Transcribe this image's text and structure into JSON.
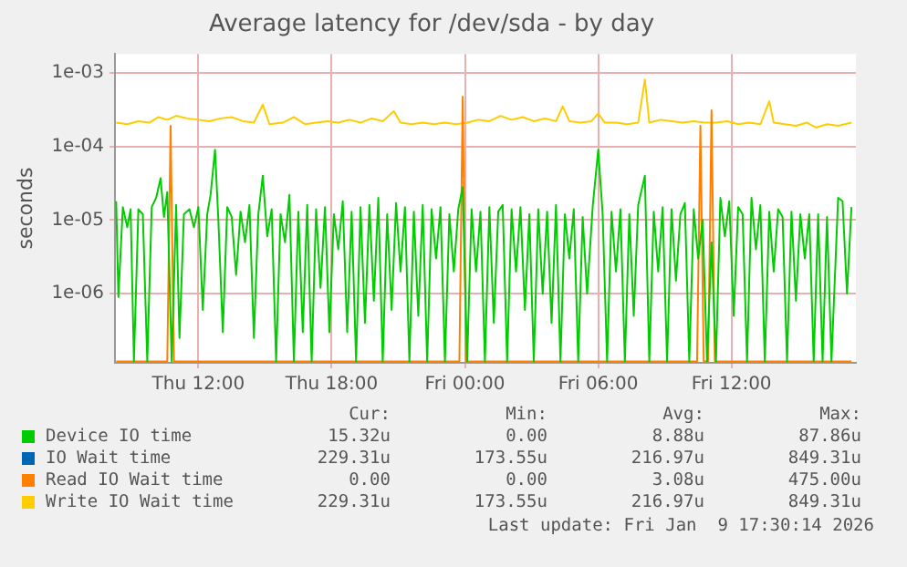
{
  "chart_data": {
    "type": "line",
    "title": "Average latency for /dev/sda - by day",
    "ylabel": "seconds",
    "log": "y",
    "grid": true,
    "legend": "bottom",
    "marker": "none",
    "line_style": "solid",
    "xlim": [
      "2026-01-08T08:15",
      "2026-01-09T17:36"
    ],
    "xticks": [
      {
        "value": "2026-01-08T12:00",
        "label": "Thu 12:00"
      },
      {
        "value": "2026-01-08T18:00",
        "label": "Thu 18:00"
      },
      {
        "value": "2026-01-09T00:00",
        "label": "Fri 00:00"
      },
      {
        "value": "2026-01-09T06:00",
        "label": "Fri 06:00"
      },
      {
        "value": "2026-01-09T12:00",
        "label": "Fri 12:00"
      }
    ],
    "ylim": [
      1.15e-07,
      0.0018
    ],
    "yticks": [
      {
        "value": 1e-06,
        "label": "1e-06"
      },
      {
        "value": 1e-05,
        "label": "1e-05"
      },
      {
        "value": 0.0001,
        "label": "1e-04"
      },
      {
        "value": 0.001,
        "label": "1e-03"
      }
    ],
    "annotations": [
      "Cur:",
      "Min:",
      "Avg:",
      "Max:",
      "15.32u",
      "0.00",
      "8.88u",
      "87.86u",
      "229.31u",
      "173.55u",
      "216.97u",
      "849.31u",
      "0.00",
      "0.00",
      "3.08u",
      "475.00u",
      "229.31u",
      "173.55u",
      "216.97u",
      "849.31u",
      "Last update: Fri Jan  9 17:30:14 2026"
    ],
    "series": [
      {
        "name": "Device IO time",
        "color": "#00cc00",
        "x": [
          "2026-01-08T08:18",
          "2026-01-08T08:24",
          "2026-01-08T08:36",
          "2026-01-08T08:48",
          "2026-01-08T08:57",
          "2026-01-08T09:06",
          "2026-01-08T09:18",
          "2026-01-08T09:30",
          "2026-01-08T09:42",
          "2026-01-08T09:54",
          "2026-01-08T10:06",
          "2026-01-08T10:18",
          "2026-01-08T10:27",
          "2026-01-08T10:36",
          "2026-01-08T10:48",
          "2026-01-08T11:00",
          "2026-01-08T11:09",
          "2026-01-08T11:21",
          "2026-01-08T11:36",
          "2026-01-08T11:48",
          "2026-01-08T12:00",
          "2026-01-08T12:12",
          "2026-01-08T12:24",
          "2026-01-08T12:33",
          "2026-01-08T12:45",
          "2026-01-08T12:54",
          "2026-01-08T13:06",
          "2026-01-08T13:18",
          "2026-01-08T13:30",
          "2026-01-08T13:42",
          "2026-01-08T13:54",
          "2026-01-08T14:06",
          "2026-01-08T14:18",
          "2026-01-08T14:30",
          "2026-01-08T14:42",
          "2026-01-08T14:54",
          "2026-01-08T15:06",
          "2026-01-08T15:18",
          "2026-01-08T15:30",
          "2026-01-08T15:42",
          "2026-01-08T15:54",
          "2026-01-08T16:06",
          "2026-01-08T16:18",
          "2026-01-08T16:30",
          "2026-01-08T16:42",
          "2026-01-08T16:54",
          "2026-01-08T17:06",
          "2026-01-08T17:18",
          "2026-01-08T17:30",
          "2026-01-08T17:42",
          "2026-01-08T17:54",
          "2026-01-08T18:06",
          "2026-01-08T18:18",
          "2026-01-08T18:30",
          "2026-01-08T18:42",
          "2026-01-08T18:54",
          "2026-01-08T19:06",
          "2026-01-08T19:18",
          "2026-01-08T19:30",
          "2026-01-08T19:42",
          "2026-01-08T19:54",
          "2026-01-08T20:06",
          "2026-01-08T20:18",
          "2026-01-08T20:30",
          "2026-01-08T20:42",
          "2026-01-08T20:54",
          "2026-01-08T21:06",
          "2026-01-08T21:18",
          "2026-01-08T21:30",
          "2026-01-08T21:42",
          "2026-01-08T21:54",
          "2026-01-08T22:06",
          "2026-01-08T22:18",
          "2026-01-08T22:30",
          "2026-01-08T22:42",
          "2026-01-08T22:54",
          "2026-01-08T23:06",
          "2026-01-08T23:18",
          "2026-01-08T23:30",
          "2026-01-08T23:42",
          "2026-01-08T23:54",
          "2026-01-09T00:06",
          "2026-01-09T00:18",
          "2026-01-09T00:30",
          "2026-01-09T00:42",
          "2026-01-09T00:54",
          "2026-01-09T01:06",
          "2026-01-09T01:18",
          "2026-01-09T01:30",
          "2026-01-09T01:42",
          "2026-01-09T01:54",
          "2026-01-09T02:06",
          "2026-01-09T02:18",
          "2026-01-09T02:30",
          "2026-01-09T02:42",
          "2026-01-09T02:54",
          "2026-01-09T03:06",
          "2026-01-09T03:18",
          "2026-01-09T03:30",
          "2026-01-09T03:42",
          "2026-01-09T03:54",
          "2026-01-09T04:06",
          "2026-01-09T04:18",
          "2026-01-09T04:30",
          "2026-01-09T04:42",
          "2026-01-09T04:54",
          "2026-01-09T05:06",
          "2026-01-09T05:18",
          "2026-01-09T05:30",
          "2026-01-09T05:45",
          "2026-01-09T06:00",
          "2026-01-09T06:12",
          "2026-01-09T06:24",
          "2026-01-09T06:36",
          "2026-01-09T06:48",
          "2026-01-09T07:00",
          "2026-01-09T07:12",
          "2026-01-09T07:24",
          "2026-01-09T07:36",
          "2026-01-09T07:48",
          "2026-01-09T08:06",
          "2026-01-09T08:18",
          "2026-01-09T08:30",
          "2026-01-09T08:42",
          "2026-01-09T08:54",
          "2026-01-09T09:06",
          "2026-01-09T09:18",
          "2026-01-09T09:30",
          "2026-01-09T09:42",
          "2026-01-09T09:54",
          "2026-01-09T10:06",
          "2026-01-09T10:18",
          "2026-01-09T10:30",
          "2026-01-09T10:42",
          "2026-01-09T10:54",
          "2026-01-09T11:06",
          "2026-01-09T11:18",
          "2026-01-09T11:30",
          "2026-01-09T11:42",
          "2026-01-09T11:54",
          "2026-01-09T12:06",
          "2026-01-09T12:18",
          "2026-01-09T12:30",
          "2026-01-09T12:42",
          "2026-01-09T12:54",
          "2026-01-09T13:06",
          "2026-01-09T13:18",
          "2026-01-09T13:30",
          "2026-01-09T13:42",
          "2026-01-09T13:54",
          "2026-01-09T14:06",
          "2026-01-09T14:18",
          "2026-01-09T14:30",
          "2026-01-09T14:42",
          "2026-01-09T14:54",
          "2026-01-09T15:06",
          "2026-01-09T15:18",
          "2026-01-09T15:30",
          "2026-01-09T15:42",
          "2026-01-09T15:54",
          "2026-01-09T16:06",
          "2026-01-09T16:18",
          "2026-01-09T16:30",
          "2026-01-09T16:48",
          "2026-01-09T17:00",
          "2026-01-09T17:12",
          "2026-01-09T17:24"
        ],
        "values": [
          1.8e-05,
          9e-07,
          1.5e-05,
          8e-06,
          1.4e-05,
          1.2e-07,
          1.4e-05,
          1.2e-05,
          1.2e-07,
          1.5e-05,
          2e-05,
          3.7e-05,
          1.1e-05,
          2.4e-05,
          1.2e-07,
          1.6e-05,
          2.5e-07,
          1.2e-05,
          1.4e-05,
          8e-06,
          1.5e-05,
          6e-07,
          1.2e-05,
          2.2e-05,
          9e-05,
          1e-05,
          3e-07,
          1.5e-05,
          1.1e-05,
          1.8e-06,
          1.3e-05,
          5e-06,
          1.6e-05,
          2.5e-07,
          1.2e-05,
          4e-05,
          6e-06,
          1.4e-05,
          1.2e-07,
          1.2e-05,
          5e-06,
          2.2e-05,
          1.2e-07,
          1.3e-05,
          3e-07,
          1.6e-05,
          1.2e-07,
          1.4e-05,
          1.2e-06,
          1.5e-05,
          3e-07,
          1.2e-05,
          4e-06,
          1.8e-05,
          3e-07,
          1.3e-05,
          1.2e-07,
          1.5e-05,
          4e-07,
          1.6e-05,
          8e-07,
          2e-05,
          1.2e-07,
          1.2e-05,
          6e-07,
          1.7e-05,
          2e-06,
          1.5e-05,
          1.2e-07,
          1.3e-05,
          5e-07,
          1.6e-05,
          1.2e-07,
          1.4e-05,
          3e-06,
          1.5e-05,
          1.2e-07,
          1.2e-05,
          2e-06,
          1.4e-05,
          2.8e-05,
          1.2e-07,
          1.4e-05,
          2e-06,
          1.3e-05,
          1.2e-07,
          1.5e-05,
          4e-07,
          1.3e-05,
          1.6e-05,
          1.2e-07,
          1.4e-05,
          2e-06,
          1.5e-05,
          6e-07,
          1.2e-05,
          1.2e-07,
          1.4e-05,
          1e-06,
          1.3e-05,
          4e-07,
          1.6e-05,
          1.2e-07,
          1.2e-05,
          3e-06,
          1.4e-05,
          1.2e-07,
          1.1e-05,
          1e-06,
          1.5e-05,
          9e-05,
          1.2e-05,
          1.2e-07,
          1.3e-05,
          2e-06,
          1.4e-05,
          1.2e-07,
          1.2e-05,
          5e-07,
          1.6e-05,
          4e-05,
          1.2e-07,
          1.3e-05,
          2e-06,
          1.5e-05,
          1.2e-07,
          1.4e-05,
          1.5e-06,
          1.2e-05,
          1.7e-05,
          1.2e-07,
          1.4e-05,
          3e-06,
          1e-05,
          1.2e-07,
          5e-06,
          1.2e-07,
          2e-05,
          6e-06,
          1.8e-05,
          5e-07,
          1.5e-05,
          1.2e-05,
          1.2e-07,
          2e-05,
          4e-06,
          1.6e-05,
          1.2e-07,
          1.3e-05,
          2e-06,
          1.4e-05,
          1.1e-05,
          1.2e-07,
          1.3e-05,
          8e-07,
          1.2e-05,
          3e-06,
          1.2e-05,
          1.2e-07,
          1.2e-05,
          1.2e-07,
          1.1e-05,
          1.2e-07,
          2e-05,
          1.8e-05,
          1e-06,
          1.5e-05
        ]
      },
      {
        "name": "IO Wait time",
        "color": "#0066b3"
      },
      {
        "name": "Read IO Wait time",
        "color": "#ff8000",
        "x": [
          "2026-01-08T08:18",
          "2026-01-08T10:36",
          "2026-01-08T10:45",
          "2026-01-08T10:54",
          "2026-01-08T23:45",
          "2026-01-08T23:54",
          "2026-01-09T00:03",
          "2026-01-09T10:27",
          "2026-01-09T10:36",
          "2026-01-09T10:45",
          "2026-01-09T10:57",
          "2026-01-09T11:06",
          "2026-01-09T11:15",
          "2026-01-09T17:24"
        ],
        "values": [
          1.2e-07,
          1.2e-07,
          0.00019,
          1.2e-07,
          1.2e-07,
          0.000475,
          1.2e-07,
          1.2e-07,
          0.00019,
          1.2e-07,
          1.2e-07,
          0.00031,
          1.2e-07,
          1.2e-07
        ]
      },
      {
        "name": "Write IO Wait time",
        "color": "#ffcc00",
        "x": [
          "2026-01-08T08:18",
          "2026-01-08T08:48",
          "2026-01-08T09:18",
          "2026-01-08T09:48",
          "2026-01-08T10:12",
          "2026-01-08T10:36",
          "2026-01-08T11:00",
          "2026-01-08T11:30",
          "2026-01-08T12:00",
          "2026-01-08T12:30",
          "2026-01-08T13:00",
          "2026-01-08T13:30",
          "2026-01-08T14:00",
          "2026-01-08T14:30",
          "2026-01-08T14:54",
          "2026-01-08T15:12",
          "2026-01-08T15:48",
          "2026-01-08T16:18",
          "2026-01-08T16:48",
          "2026-01-08T17:18",
          "2026-01-08T17:48",
          "2026-01-08T18:18",
          "2026-01-08T18:48",
          "2026-01-08T19:18",
          "2026-01-08T19:48",
          "2026-01-08T20:18",
          "2026-01-08T20:48",
          "2026-01-08T21:06",
          "2026-01-08T21:36",
          "2026-01-08T22:06",
          "2026-01-08T22:36",
          "2026-01-08T23:06",
          "2026-01-08T23:36",
          "2026-01-09T00:06",
          "2026-01-09T00:36",
          "2026-01-09T01:06",
          "2026-01-09T01:36",
          "2026-01-09T02:06",
          "2026-01-09T02:36",
          "2026-01-09T03:06",
          "2026-01-09T03:36",
          "2026-01-09T04:06",
          "2026-01-09T04:24",
          "2026-01-09T04:42",
          "2026-01-09T05:12",
          "2026-01-09T05:42",
          "2026-01-09T06:00",
          "2026-01-09T06:18",
          "2026-01-09T06:48",
          "2026-01-09T07:18",
          "2026-01-09T07:48",
          "2026-01-09T08:06",
          "2026-01-09T08:18",
          "2026-01-09T08:48",
          "2026-01-09T09:18",
          "2026-01-09T09:48",
          "2026-01-09T10:18",
          "2026-01-09T10:48",
          "2026-01-09T11:18",
          "2026-01-09T11:48",
          "2026-01-09T12:18",
          "2026-01-09T12:48",
          "2026-01-09T13:18",
          "2026-01-09T13:42",
          "2026-01-09T13:54",
          "2026-01-09T14:24",
          "2026-01-09T14:54",
          "2026-01-09T15:24",
          "2026-01-09T15:48",
          "2026-01-09T16:18",
          "2026-01-09T16:48",
          "2026-01-09T17:24"
        ],
        "values": [
          0.00021,
          0.0002,
          0.00022,
          0.00021,
          0.00025,
          0.00023,
          0.00026,
          0.00024,
          0.00023,
          0.00022,
          0.00024,
          0.00025,
          0.00022,
          0.00021,
          0.00037,
          0.0002,
          0.00021,
          0.00025,
          0.0002,
          0.00021,
          0.00022,
          0.00021,
          0.00023,
          0.00021,
          0.00024,
          0.00022,
          0.0003,
          0.00021,
          0.0002,
          0.00021,
          0.0002,
          0.00021,
          0.0002,
          0.00021,
          0.00023,
          0.00022,
          0.00026,
          0.00023,
          0.00025,
          0.00022,
          0.00024,
          0.00022,
          0.00035,
          0.00022,
          0.00021,
          0.00022,
          0.00028,
          0.00021,
          0.00021,
          0.0002,
          0.00021,
          0.00081,
          0.00021,
          0.00023,
          0.00022,
          0.00021,
          0.00022,
          0.00021,
          0.00021,
          0.00022,
          0.0002,
          0.00021,
          0.0002,
          0.00041,
          0.00021,
          0.0002,
          0.00019,
          0.00021,
          0.00018,
          0.0002,
          0.00019,
          0.00021
        ]
      }
    ]
  }
}
